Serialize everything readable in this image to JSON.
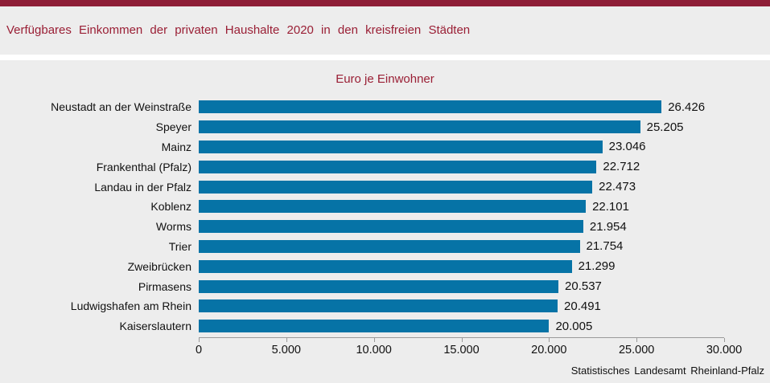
{
  "page": {
    "background": "#ededed",
    "accent_red": "#8e1e37",
    "title_color": "#9a1f35",
    "axis_color": "#9a9a9a"
  },
  "header": {
    "title": "Verfügbares Einkommen der privaten Haushalte 2020 in den kreisfreien Städten"
  },
  "chart_data": {
    "type": "bar",
    "orientation": "horizontal",
    "title": "Euro je Einwohner",
    "categories": [
      "Neustadt an der Weinstraße",
      "Speyer",
      "Mainz",
      "Frankenthal (Pfalz)",
      "Landau in der Pfalz",
      "Koblenz",
      "Worms",
      "Trier",
      "Zweibrücken",
      "Pirmasens",
      "Ludwigshafen am Rhein",
      "Kaiserslautern"
    ],
    "values": [
      26426,
      25205,
      23046,
      22712,
      22473,
      22101,
      21954,
      21754,
      21299,
      20537,
      20491,
      20005
    ],
    "value_labels": [
      "26.426",
      "25.205",
      "23.046",
      "22.712",
      "22.473",
      "22.101",
      "21.954",
      "21.754",
      "21.299",
      "20.537",
      "20.491",
      "20.005"
    ],
    "xlim": [
      0,
      30000
    ],
    "x_ticks": [
      0,
      5000,
      10000,
      15000,
      20000,
      25000,
      30000
    ],
    "x_tick_labels": [
      "0",
      "5.000",
      "10.000",
      "15.000",
      "20.000",
      "25.000",
      "30.000"
    ],
    "bar_color": "#0673a6",
    "grid": false,
    "legend": false
  },
  "footer": {
    "source": "Statistisches Landesamt Rheinland-Pfalz"
  }
}
